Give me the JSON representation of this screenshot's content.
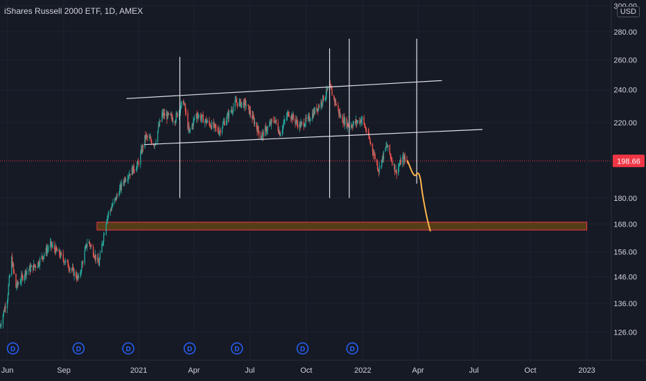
{
  "header": {
    "title": "iShares Russell 2000 ETF, 1D, AMEX",
    "currency": "USD"
  },
  "colors": {
    "background": "#161a25",
    "up": "#26a69a",
    "down": "#ef5350",
    "last_price": "#f23645",
    "zone_fill": "#6b4a14",
    "zone_stroke": "#f23645",
    "projection": "#ffb74d",
    "drawing": "#e0e3eb",
    "dividend": "#2962ff"
  },
  "chart_data": {
    "type": "candlestick",
    "symbol": "iShares Russell 2000 ETF",
    "interval": "1D",
    "exchange": "AMEX",
    "y_scale": "log",
    "ylim": [
      118,
      302
    ],
    "yticks": [
      126,
      136,
      146,
      156,
      168,
      180,
      198.66,
      220,
      240,
      260,
      280,
      300
    ],
    "ytick_labels": [
      "126.00",
      "136.00",
      "146.00",
      "156.00",
      "168.00",
      "180.00",
      "198.66",
      "220.00",
      "240.00",
      "260.00",
      "280.00",
      "300.00"
    ],
    "x_domain": [
      "2020-05-20",
      "2023-02-10"
    ],
    "xticks": [
      {
        "date": "2020-06-01",
        "label": "Jun"
      },
      {
        "date": "2020-09-01",
        "label": "Sep"
      },
      {
        "date": "2021-01-01",
        "label": "2021"
      },
      {
        "date": "2021-04-01",
        "label": "Apr"
      },
      {
        "date": "2021-07-01",
        "label": "Jul"
      },
      {
        "date": "2021-10-01",
        "label": "Oct"
      },
      {
        "date": "2022-01-01",
        "label": "2022"
      },
      {
        "date": "2022-04-01",
        "label": "Apr"
      },
      {
        "date": "2022-07-01",
        "label": "Jul"
      },
      {
        "date": "2022-10-01",
        "label": "Oct"
      },
      {
        "date": "2023-01-01",
        "label": "2023"
      }
    ],
    "price_path": [
      [
        "2020-05-20",
        128
      ],
      [
        "2020-06-01",
        138
      ],
      [
        "2020-06-08",
        153
      ],
      [
        "2020-06-15",
        142
      ],
      [
        "2020-07-01",
        148
      ],
      [
        "2020-07-20",
        151
      ],
      [
        "2020-08-10",
        159
      ],
      [
        "2020-08-25",
        155
      ],
      [
        "2020-09-10",
        150
      ],
      [
        "2020-09-25",
        145
      ],
      [
        "2020-10-10",
        161
      ],
      [
        "2020-10-28",
        151
      ],
      [
        "2020-11-10",
        171
      ],
      [
        "2020-11-25",
        180
      ],
      [
        "2020-12-10",
        190
      ],
      [
        "2020-12-31",
        197
      ],
      [
        "2021-01-12",
        212
      ],
      [
        "2021-01-27",
        208
      ],
      [
        "2021-02-08",
        225
      ],
      [
        "2021-03-01",
        222
      ],
      [
        "2021-03-15",
        233
      ],
      [
        "2021-03-24",
        214
      ],
      [
        "2021-04-05",
        225
      ],
      [
        "2021-05-12",
        215
      ],
      [
        "2021-06-08",
        232
      ],
      [
        "2021-06-25",
        231
      ],
      [
        "2021-07-19",
        212
      ],
      [
        "2021-08-10",
        222
      ],
      [
        "2021-08-19",
        214
      ],
      [
        "2021-09-02",
        226
      ],
      [
        "2021-09-20",
        218
      ],
      [
        "2021-10-05",
        222
      ],
      [
        "2021-10-25",
        232
      ],
      [
        "2021-11-08",
        242
      ],
      [
        "2021-11-26",
        223
      ],
      [
        "2021-12-10",
        218
      ],
      [
        "2021-12-31",
        222
      ],
      [
        "2022-01-10",
        212
      ],
      [
        "2022-01-27",
        194
      ],
      [
        "2022-02-09",
        207
      ],
      [
        "2022-02-24",
        193
      ],
      [
        "2022-03-07",
        200
      ],
      [
        "2022-03-15",
        198.66
      ]
    ],
    "last_price": 198.66,
    "projection": [
      [
        "2022-03-15",
        198.66
      ],
      [
        "2022-03-26",
        190
      ],
      [
        "2022-04-01",
        193
      ],
      [
        "2022-04-05",
        190
      ],
      [
        "2022-04-08",
        182
      ],
      [
        "2022-04-16",
        170
      ],
      [
        "2022-04-21",
        165
      ]
    ],
    "support_zone": {
      "from": "2020-10-25",
      "to": "2023-01-01",
      "low": 165.3,
      "high": 168.8
    },
    "channel_upper": [
      [
        "2020-12-12",
        234.5
      ],
      [
        "2022-05-10",
        246
      ]
    ],
    "channel_lower": [
      [
        "2021-01-10",
        207.5
      ],
      [
        "2022-07-15",
        216
      ]
    ],
    "vertical_markers": [
      {
        "date": "2021-03-09",
        "top": 262,
        "bottom": 180
      },
      {
        "date": "2021-11-08",
        "top": 268,
        "bottom": 180
      },
      {
        "date": "2021-12-10",
        "top": 275,
        "bottom": 180
      },
      {
        "date": "2022-03-30",
        "top": 275,
        "bottom": 187
      }
    ],
    "dividend_markers": [
      "2020-06-10",
      "2020-09-25",
      "2020-12-15",
      "2021-03-25",
      "2021-06-10",
      "2021-09-25",
      "2021-12-15"
    ],
    "dividend_label": "D"
  }
}
